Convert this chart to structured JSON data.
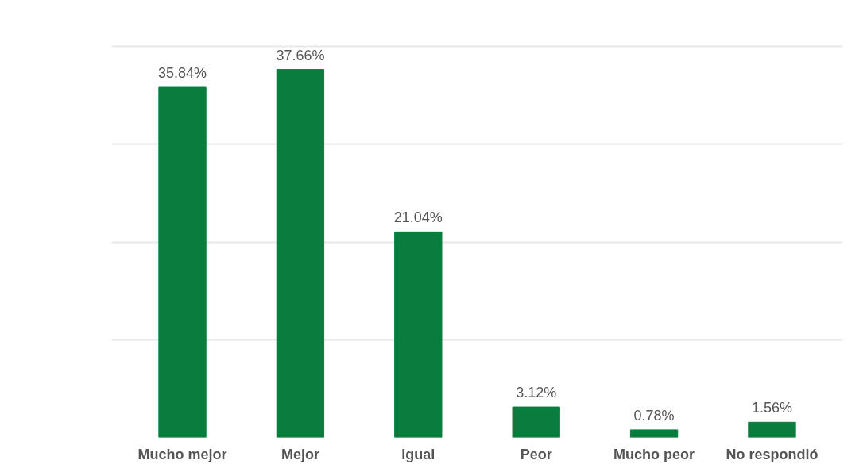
{
  "chart_data": {
    "type": "bar",
    "categories": [
      "Mucho mejor",
      "Mejor",
      "Igual",
      "Peor",
      "Mucho peor",
      "No respondió"
    ],
    "values": [
      35.84,
      37.66,
      21.04,
      3.12,
      0.78,
      1.56
    ],
    "value_labels": [
      "35.84%",
      "37.66%",
      "21.04%",
      "3.12%",
      "0.78%",
      "1.56%"
    ],
    "color": "#0a7d3e",
    "grid": "y",
    "tick_labels": "x"
  }
}
